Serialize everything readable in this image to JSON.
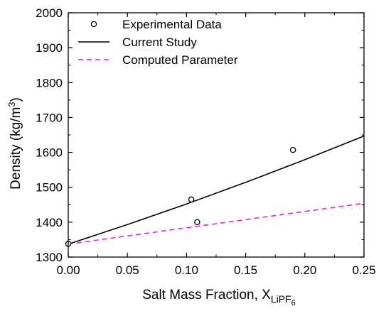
{
  "chart_data": {
    "type": "scatter",
    "xlabel_main": "Salt Mass Fraction, X",
    "xlabel_sub": "LiPF",
    "xlabel_subsub": "6",
    "ylabel_main": "Density (kg/m",
    "ylabel_sup": "3",
    "ylabel_close": ")",
    "xlim": [
      0.0,
      0.25
    ],
    "ylim": [
      1300,
      2000
    ],
    "x_ticks": [
      "0.00",
      "0.05",
      "0.10",
      "0.15",
      "0.20",
      "0.25"
    ],
    "y_ticks": [
      "1300",
      "1400",
      "1500",
      "1600",
      "1700",
      "1800",
      "1900",
      "2000"
    ],
    "grid": false,
    "legend_position": "top-left",
    "series": [
      {
        "name": "Experimental Data",
        "kind": "scatter",
        "marker": "open-circle",
        "color": "#000000",
        "points": [
          {
            "x": 0.0,
            "y": 1338
          },
          {
            "x": 0.104,
            "y": 1465
          },
          {
            "x": 0.109,
            "y": 1400
          },
          {
            "x": 0.19,
            "y": 1607
          }
        ]
      },
      {
        "name": "Current Study",
        "kind": "line",
        "style": "solid",
        "color": "#000000",
        "points": [
          {
            "x": 0.0,
            "y": 1337
          },
          {
            "x": 0.05,
            "y": 1393
          },
          {
            "x": 0.1,
            "y": 1452
          },
          {
            "x": 0.15,
            "y": 1514
          },
          {
            "x": 0.2,
            "y": 1579
          },
          {
            "x": 0.25,
            "y": 1647
          }
        ]
      },
      {
        "name": "Computed Parameter",
        "kind": "line",
        "style": "dashed",
        "color": "#e020e0",
        "points": [
          {
            "x": 0.0,
            "y": 1337
          },
          {
            "x": 0.25,
            "y": 1454
          }
        ]
      }
    ]
  }
}
